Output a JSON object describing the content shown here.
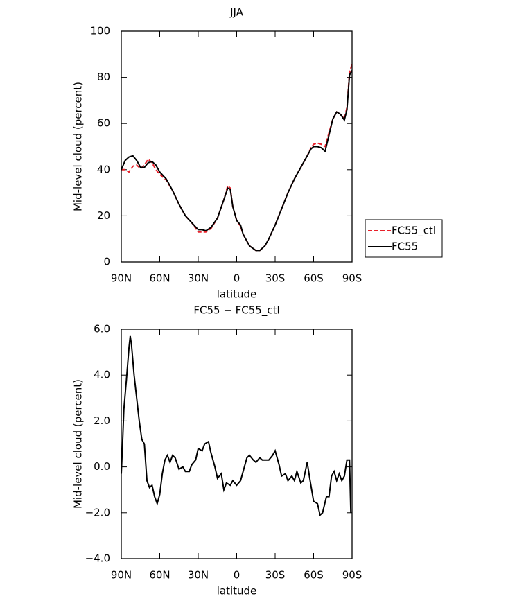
{
  "chart_data": [
    {
      "type": "line",
      "title": "JJA",
      "xlabel": "latitude",
      "ylabel": "Mid-level cloud (percent)",
      "x": [
        90,
        87,
        84,
        81,
        78,
        75,
        72,
        69,
        66,
        63,
        60,
        55,
        50,
        45,
        40,
        35,
        30,
        27,
        24,
        20,
        15,
        10,
        7,
        5,
        3,
        0,
        -3,
        -5,
        -10,
        -15,
        -18,
        -22,
        -25,
        -30,
        -35,
        -40,
        -45,
        -50,
        -55,
        -58,
        -60,
        -63,
        -66,
        -69,
        -72,
        -75,
        -78,
        -81,
        -84,
        -86,
        -88,
        -90
      ],
      "xlim": [
        90,
        -90
      ],
      "xticks": [
        {
          "value": 90,
          "label": "90N"
        },
        {
          "value": 60,
          "label": "60N"
        },
        {
          "value": 30,
          "label": "30N"
        },
        0,
        {
          "value": -30,
          "label": "30S"
        },
        {
          "value": -60,
          "label": "60S"
        },
        {
          "value": -90,
          "label": "90S"
        }
      ],
      "ylim": [
        0,
        100
      ],
      "yticks": [
        0,
        20,
        40,
        60,
        80,
        100
      ],
      "legend": "right",
      "series": [
        {
          "name": "FC55_ctl",
          "color": "#e8202a",
          "dash": true,
          "values": [
            40,
            40,
            39,
            41.5,
            42,
            40.5,
            42,
            44.5,
            43,
            40,
            38,
            35.5,
            31,
            25,
            20,
            17,
            13,
            13,
            13,
            14.5,
            19,
            27,
            33,
            32,
            24,
            18,
            15.5,
            12,
            7,
            5,
            5,
            7,
            10,
            16,
            23,
            30,
            36,
            41,
            46,
            49.5,
            51,
            51.5,
            51,
            50,
            56,
            62,
            65,
            64,
            62,
            67,
            82,
            86
          ]
        },
        {
          "name": "FC55",
          "color": "#000000",
          "dash": false,
          "values": [
            40,
            44,
            45.5,
            46,
            44,
            41,
            41,
            43,
            43.5,
            42,
            39,
            36,
            31,
            25,
            20,
            17,
            14,
            14,
            13.5,
            15,
            19,
            27,
            32,
            31.5,
            24,
            18,
            16,
            12,
            7,
            5,
            5,
            7,
            10,
            16,
            23,
            30,
            36,
            41,
            46,
            49,
            50,
            50,
            49.5,
            48,
            55,
            62,
            65,
            64,
            61.5,
            66,
            81,
            83
          ]
        }
      ]
    },
    {
      "type": "line",
      "title": "FC55 − FC55_ctl",
      "xlabel": "latitude",
      "ylabel": "Mid-level cloud (percent)",
      "x": [
        90,
        89,
        88,
        86,
        84,
        83,
        82,
        80,
        78,
        76,
        74,
        72,
        70,
        68,
        66,
        64,
        62,
        60,
        58,
        56,
        54,
        52,
        50,
        48,
        45,
        42,
        40,
        37,
        35,
        32,
        30,
        27,
        25,
        22,
        20,
        17,
        15,
        12,
        10,
        8,
        5,
        3,
        0,
        -3,
        -5,
        -8,
        -10,
        -13,
        -15,
        -18,
        -20,
        -25,
        -28,
        -30,
        -33,
        -35,
        -38,
        -40,
        -43,
        -45,
        -47,
        -50,
        -52,
        -55,
        -57,
        -60,
        -63,
        -65,
        -67,
        -70,
        -72,
        -74,
        -76,
        -78,
        -80,
        -82,
        -84,
        -86,
        -88,
        -89
      ],
      "xlim": [
        90,
        -90
      ],
      "xticks": [
        {
          "value": 90,
          "label": "90N"
        },
        {
          "value": 60,
          "label": "60N"
        },
        {
          "value": 30,
          "label": "30N"
        },
        0,
        {
          "value": -30,
          "label": "30S"
        },
        {
          "value": -60,
          "label": "60S"
        },
        {
          "value": -90,
          "label": "90S"
        }
      ],
      "ylim": [
        -4,
        6
      ],
      "yticks": [
        {
          "value": -4,
          "label": "−4.0"
        },
        {
          "value": -2,
          "label": "−2.0"
        },
        {
          "value": 0,
          "label": "0.0"
        },
        {
          "value": 2,
          "label": "2.0"
        },
        {
          "value": 4,
          "label": "4.0"
        },
        {
          "value": 6,
          "label": "6.0"
        }
      ],
      "series": [
        {
          "name": "FC55 − FC55_ctl",
          "color": "#000000",
          "dash": false,
          "values": [
            -0.3,
            1,
            2.5,
            3.8,
            5.2,
            5.7,
            5.3,
            4,
            3,
            2,
            1.2,
            1.0,
            -0.6,
            -0.9,
            -0.8,
            -1.3,
            -1.6,
            -1.2,
            -0.3,
            0.3,
            0.5,
            0.2,
            0.5,
            0.4,
            -0.1,
            0.0,
            -0.2,
            -0.2,
            0.1,
            0.3,
            0.8,
            0.7,
            1.0,
            1.1,
            0.6,
            0.0,
            -0.5,
            -0.3,
            -1.0,
            -0.7,
            -0.8,
            -0.6,
            -0.8,
            -0.6,
            -0.2,
            0.4,
            0.5,
            0.3,
            0.2,
            0.4,
            0.3,
            0.3,
            0.5,
            0.7,
            0.1,
            -0.4,
            -0.3,
            -0.6,
            -0.4,
            -0.6,
            -0.2,
            -0.7,
            -0.6,
            0.2,
            -0.5,
            -1.5,
            -1.6,
            -2.1,
            -2.0,
            -1.3,
            -1.3,
            -0.4,
            -0.2,
            -0.6,
            -0.3,
            -0.6,
            -0.4,
            0.3,
            0.3,
            -2.0
          ]
        }
      ]
    }
  ]
}
